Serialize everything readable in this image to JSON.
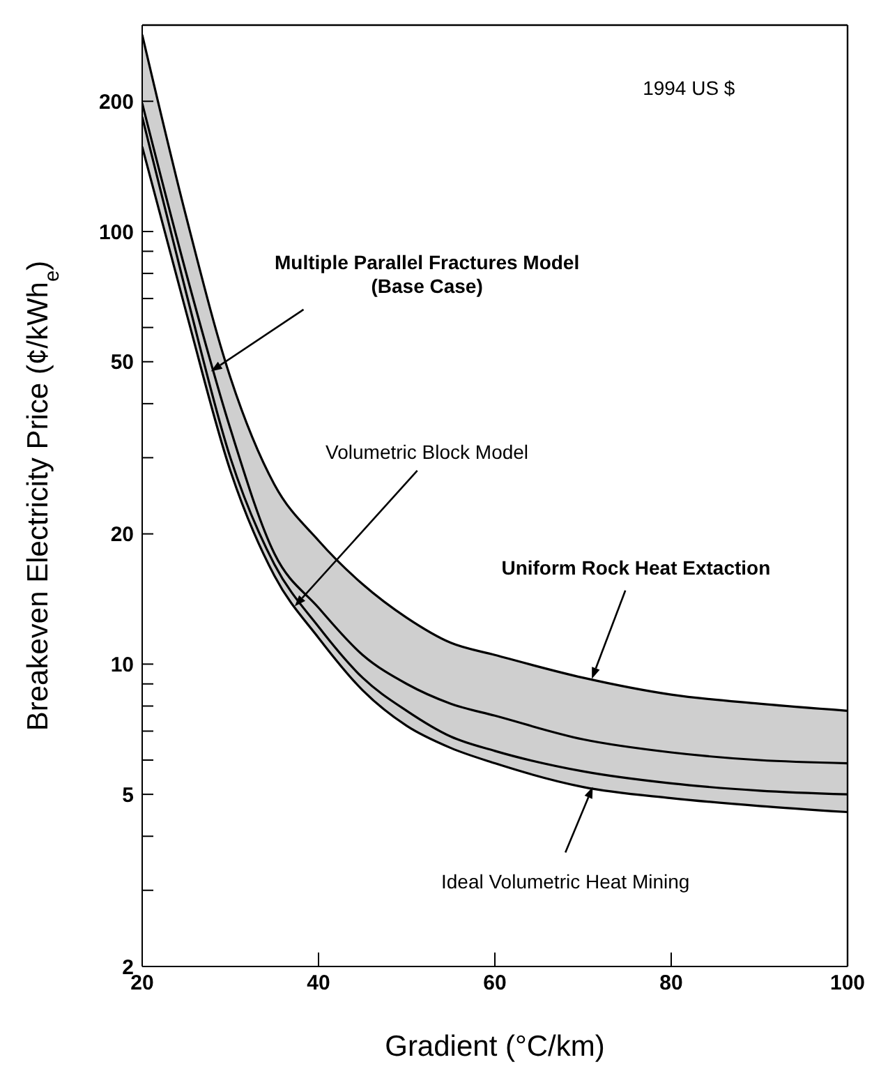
{
  "chart_data": {
    "type": "line",
    "xlabel": "Gradient (°C/km)",
    "ylabel": "Breakeven Electricity Price (¢/kWh$_{e}$)",
    "log": "y",
    "x": [
      20,
      25,
      30,
      35,
      40,
      45,
      50,
      55,
      60,
      70,
      80,
      90,
      100
    ],
    "xlim": [
      20,
      100
    ],
    "xticks": [
      20,
      40,
      60,
      80,
      100
    ],
    "ylim": [
      2,
      300
    ],
    "yticks": [
      2,
      {
        "value": 3,
        "label": null
      },
      {
        "value": 4,
        "label": null
      },
      5,
      {
        "value": 6,
        "label": null
      },
      {
        "value": 7,
        "label": null
      },
      {
        "value": 8,
        "label": null
      },
      {
        "value": 9,
        "label": null
      },
      10,
      20,
      {
        "value": 30,
        "label": null
      },
      {
        "value": 40,
        "label": null
      },
      50,
      {
        "value": 60,
        "label": null
      },
      {
        "value": 70,
        "label": null
      },
      {
        "value": 80,
        "label": null
      },
      {
        "value": 90,
        "label": null
      },
      100,
      200,
      {
        "value": 300,
        "label": null
      }
    ],
    "series": [
      {
        "color": "#000000",
        "values": [
          285,
          108,
          46,
          26,
          19.3,
          15.3,
          12.8,
          11.2,
          10.5,
          9.3,
          8.5,
          8.1,
          7.8
        ],
        "lower": [
          157,
          65,
          28,
          16,
          11.5,
          8.7,
          7.2,
          6.4,
          5.9,
          5.2,
          4.9,
          4.7,
          4.55
        ],
        "upper": [
          285,
          108,
          46,
          26,
          19.3,
          15.3,
          12.8,
          11.2,
          10.5,
          9.3,
          8.5,
          8.1,
          7.8
        ]
      },
      {
        "color": "#000000",
        "values": [
          198,
          80,
          35,
          18,
          13.5,
          10.5,
          9,
          8.1,
          7.6,
          6.7,
          6.25,
          6,
          5.9
        ]
      },
      {
        "color": "#000000",
        "values": [
          184,
          72,
          30,
          17,
          12.2,
          9.3,
          7.8,
          6.8,
          6.3,
          5.65,
          5.3,
          5.1,
          5
        ]
      },
      {
        "color": "#000000",
        "values": [
          157,
          65,
          28,
          16,
          11.5,
          8.7,
          7.2,
          6.4,
          5.9,
          5.2,
          4.9,
          4.7,
          4.55
        ]
      }
    ],
    "annotations": [
      "1994 US $",
      {
        "text": "Multiple Parallel Fractures Model\n(Base Case)",
        "x": 27.8,
        "y": 47.5
      },
      {
        "text": "Volumetric Block Model",
        "x": 37.3,
        "y": 13.6
      },
      {
        "text": "Uniform Rock Heat Extaction",
        "x": 71,
        "y": 9.25
      },
      {
        "text": "Ideal Volumetric Heat Mining",
        "x": 71.1,
        "y": 5.2
      }
    ]
  }
}
